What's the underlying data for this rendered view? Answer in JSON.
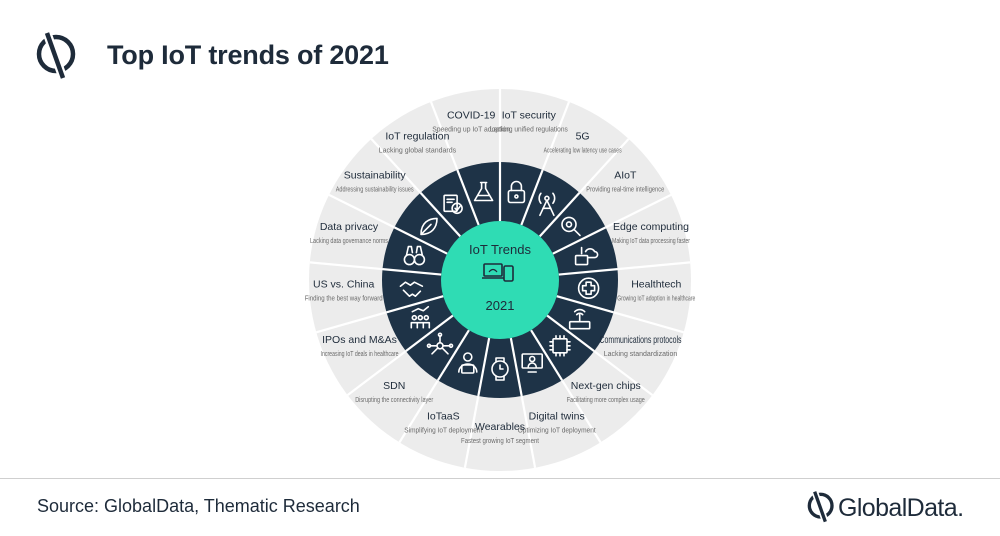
{
  "header": {
    "title": "Top IoT trends of 2021"
  },
  "center": {
    "title": "IoT Trends",
    "year": "2021"
  },
  "segments": [
    {
      "label": "IoT security",
      "desc": "Lacking unified regulations",
      "icon": "padlock-icon"
    },
    {
      "label": "5G",
      "desc": "Accelerating low latency use cases",
      "icon": "cell-tower-icon"
    },
    {
      "label": "AIoT",
      "desc": "Providing real-time intelligence",
      "icon": "ai-search-icon"
    },
    {
      "label": "Edge computing",
      "desc": "Making IoT data processing faster",
      "icon": "edge-computing-icon"
    },
    {
      "label": "Healthtech",
      "desc": "Growing IoT adoption in healthcare",
      "icon": "medical-cross-icon"
    },
    {
      "label": "Communications protocols",
      "desc": "Lacking standardization",
      "icon": "router-icon"
    },
    {
      "label": "Next-gen chips",
      "desc": "Facilitating more complex usage",
      "icon": "chip-icon"
    },
    {
      "label": "Digital twins",
      "desc": "Optimizing IoT deployment",
      "icon": "digital-twin-icon"
    },
    {
      "label": "Wearables",
      "desc": "Fastest growing IoT segment",
      "icon": "smartwatch-icon"
    },
    {
      "label": "IoTaaS",
      "desc": "Simplifying IoT deployment",
      "icon": "developer-icon"
    },
    {
      "label": "SDN",
      "desc": "Disrupting the connectivity layer",
      "icon": "network-icon"
    },
    {
      "label": "IPOs and M&As",
      "desc": "Increasing IoT deals in healthcare",
      "icon": "growth-people-icon"
    },
    {
      "label": "US vs. China",
      "desc": "Finding the best way forward",
      "icon": "handshake-icon"
    },
    {
      "label": "Data privacy",
      "desc": "Lacking data governance norms",
      "icon": "binoculars-icon"
    },
    {
      "label": "Sustainability",
      "desc": "Addressing sustainability issues",
      "icon": "leaf-icon"
    },
    {
      "label": "IoT regulation",
      "desc": "Lacking global standards",
      "icon": "regulation-icon"
    },
    {
      "label": "COVID-19",
      "desc": "Speeding up IoT adoption",
      "icon": "flask-icon"
    }
  ],
  "footer": {
    "source": "Source: GlobalData, Thematic Research",
    "brand": "GlobalData."
  },
  "colors": {
    "navy": "#1e3347",
    "teal": "#2fdcb4",
    "ring": "#ececec",
    "text": "#1e2b3a"
  }
}
